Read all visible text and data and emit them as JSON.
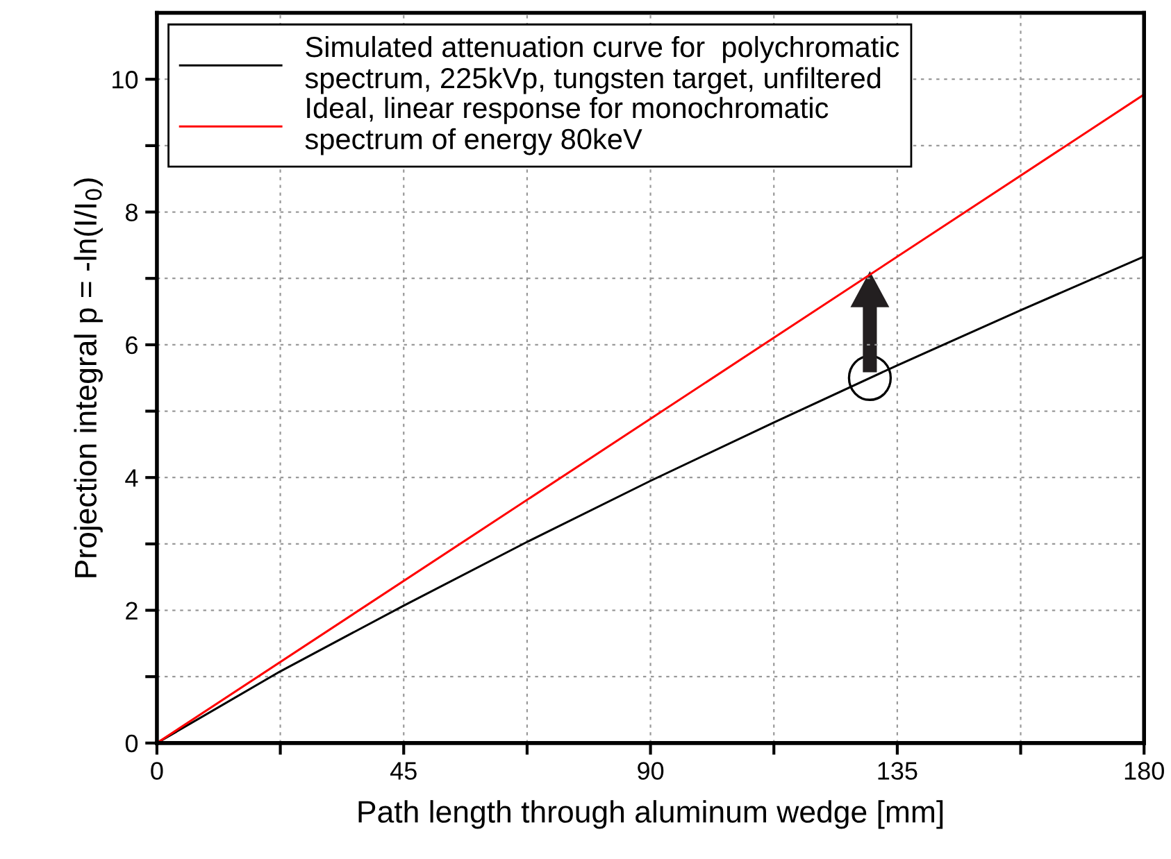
{
  "chart_data": {
    "type": "line",
    "xlabel": "Path length through aluminum wedge [mm]",
    "ylabel": "Projection integral p = -ln(I/I$_{0}$)",
    "x": [
      0,
      22.5,
      45,
      67.5,
      90,
      112.5,
      135,
      157.5,
      180
    ],
    "series": [
      {
        "name": "Simulated attenuation curve for  polychromatic\nspectrum, 225kVp, tungsten target, unfiltered",
        "color": "#000000",
        "values": [
          0,
          1.08,
          2.07,
          3.03,
          3.95,
          4.83,
          5.69,
          6.52,
          7.33
        ]
      },
      {
        "name": "Ideal, linear response for monochromatic\nspectrum of energy 80keV",
        "color": "#ff0000",
        "x": [
          0,
          180
        ],
        "values": [
          0,
          9.77
        ]
      }
    ],
    "xlim": [
      0,
      180
    ],
    "ylim": [
      0,
      11
    ],
    "xticks": [
      0,
      {
        "value": 22.5,
        "label": null
      },
      45,
      {
        "value": 67.5,
        "label": null
      },
      90,
      {
        "value": 112.5,
        "label": null
      },
      135,
      {
        "value": 157.5,
        "label": null
      },
      180
    ],
    "yticks": [
      0,
      {
        "value": 1,
        "label": null
      },
      2,
      {
        "value": 3,
        "label": null
      },
      4,
      {
        "value": 5,
        "label": null
      },
      6,
      {
        "value": 7,
        "label": null
      },
      8,
      {
        "value": 9,
        "label": null
      },
      10
    ],
    "grid": true,
    "legend": "top left",
    "marker": "none",
    "line_style": "solid"
  }
}
